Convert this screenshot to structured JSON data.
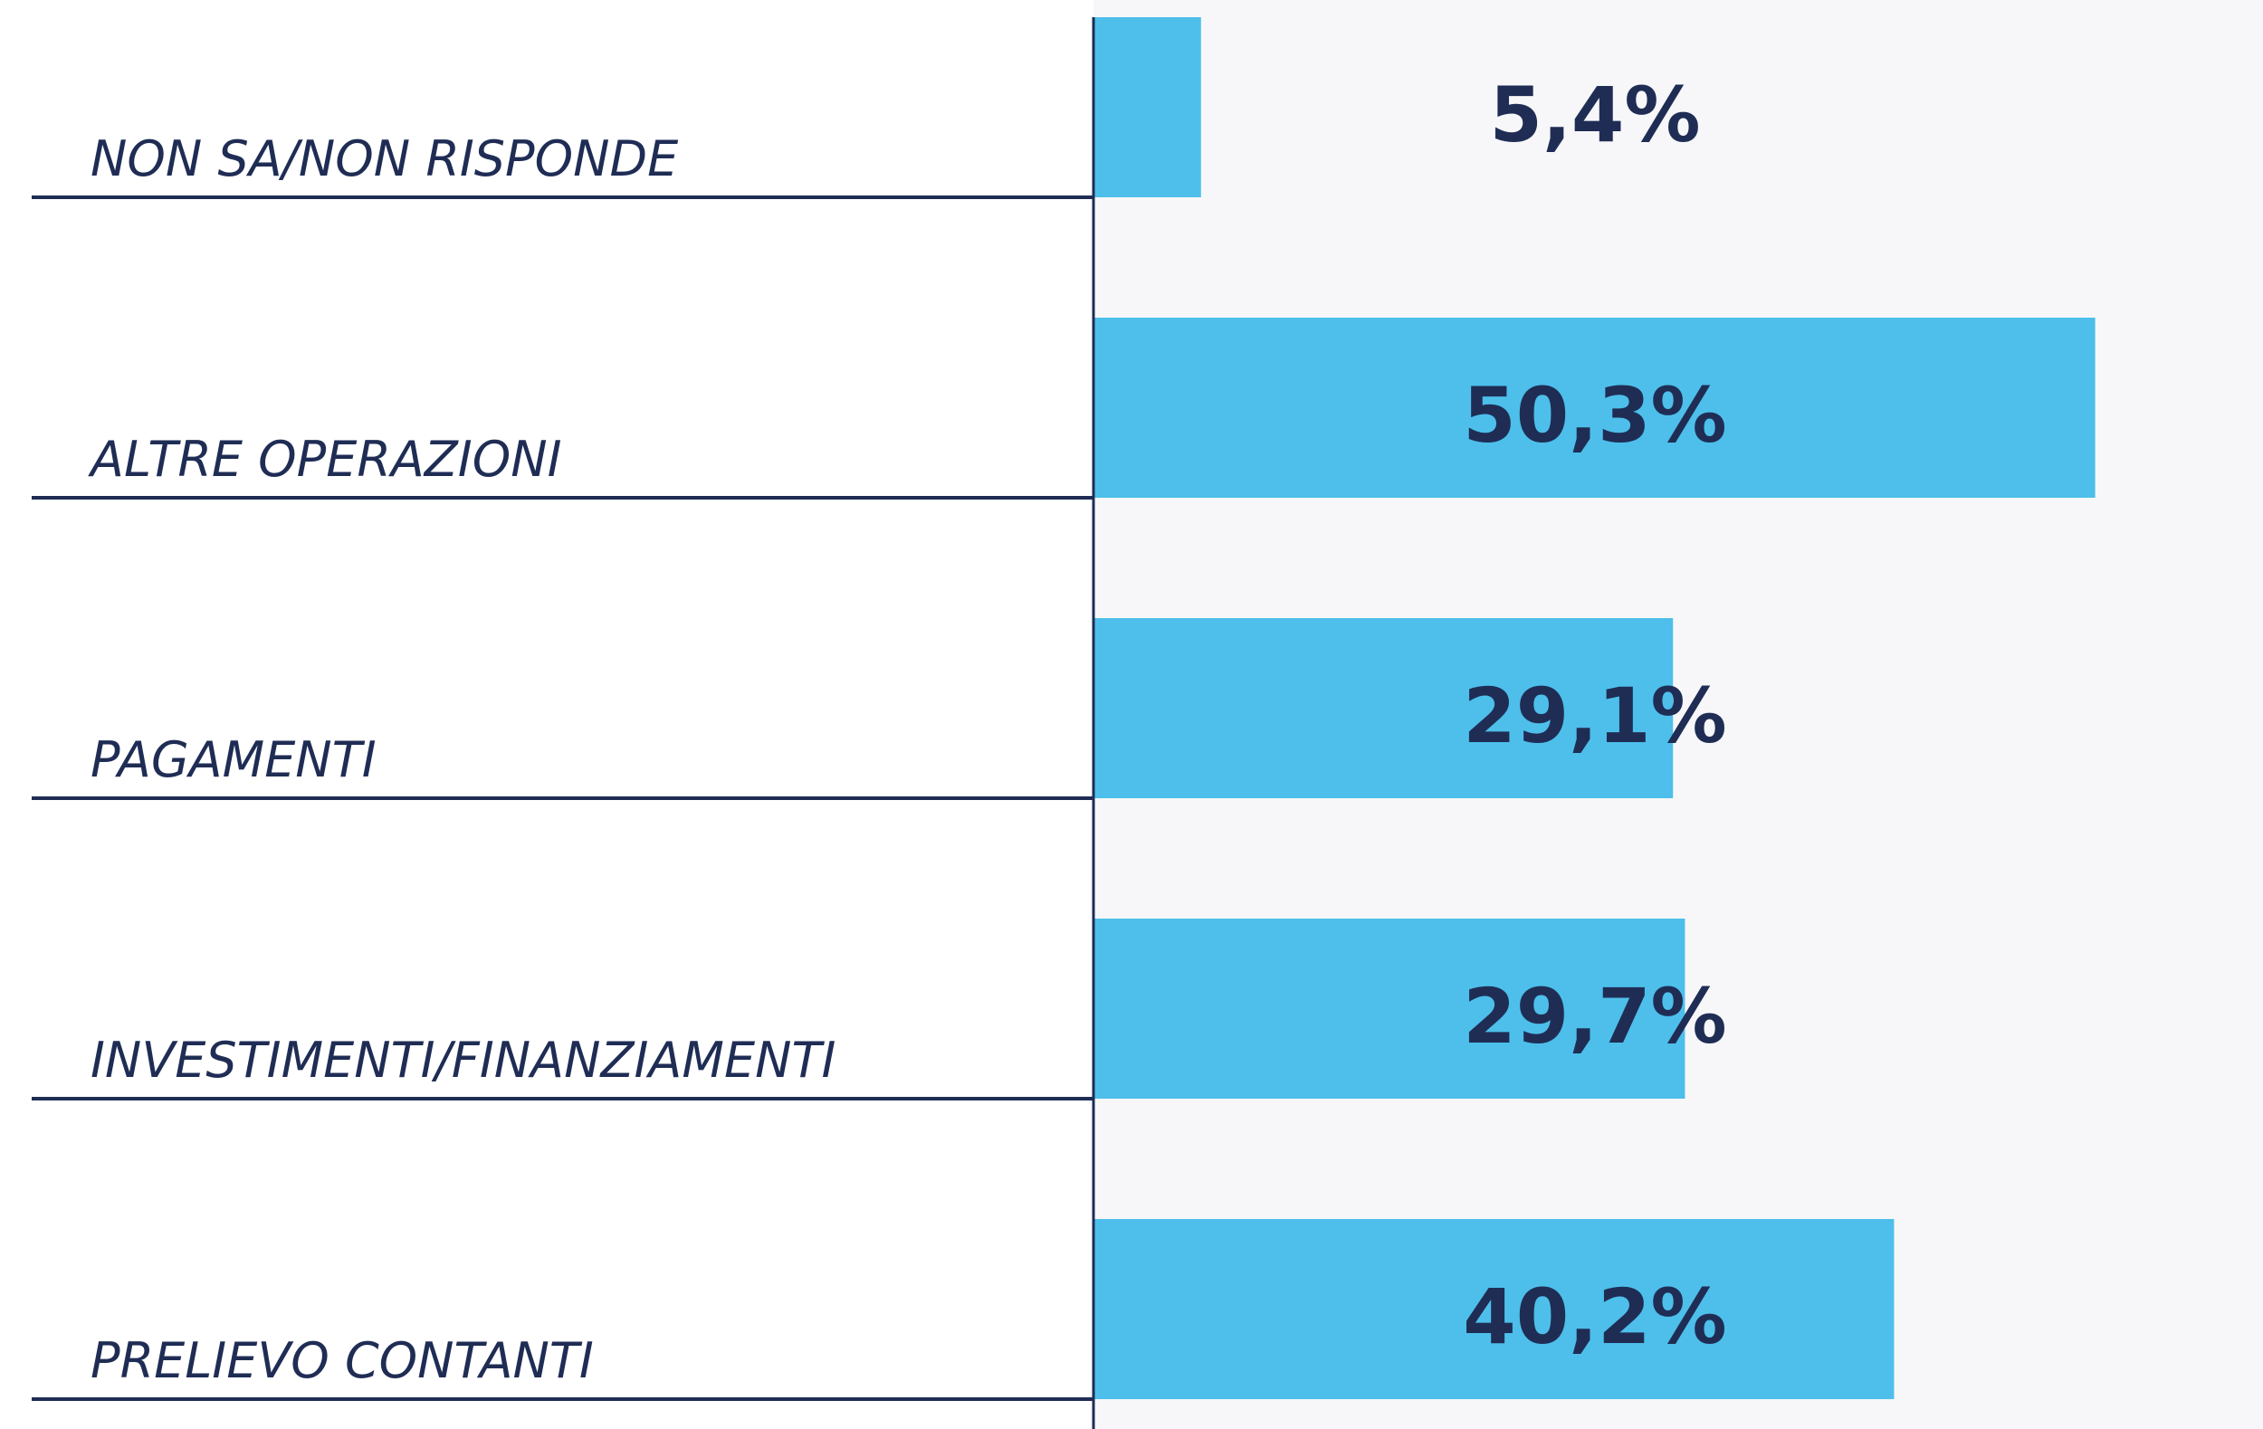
{
  "chart_data": {
    "type": "bar",
    "orientation": "horizontal",
    "categories": [
      "NON SA/NON RISPONDE",
      "ALTRE OPERAZIONI",
      "PAGAMENTI",
      "INVESTIMENTI/FINANZIAMENTI",
      "PRELIEVO CONTANTI"
    ],
    "values": [
      5.4,
      50.3,
      29.1,
      29.7,
      40.2
    ],
    "value_labels": [
      "5,4%",
      "50,3%",
      "29,1%",
      "29,7%",
      "40,2%"
    ],
    "color": "#4dbfea"
  }
}
